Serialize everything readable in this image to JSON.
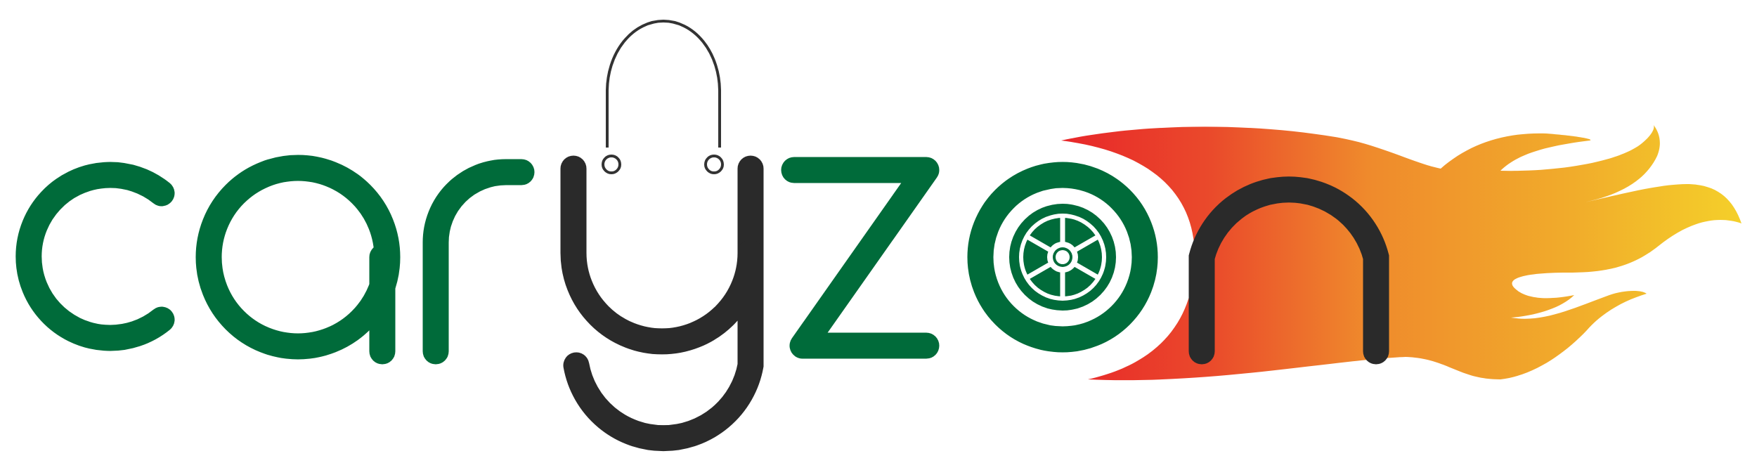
{
  "logo": {
    "wordmark": "caryzon",
    "colors": {
      "brand_green": "#006b3a",
      "dark_letters": "#2a2a2a",
      "bag_handle": "#333333",
      "flame_red": "#e8262a",
      "flame_orange": "#ef8a2c",
      "flame_yellow": "#f4d02a"
    },
    "icons": [
      "shopping-bag-handle-icon",
      "car-wheel-icon",
      "flame-trail-icon"
    ]
  }
}
